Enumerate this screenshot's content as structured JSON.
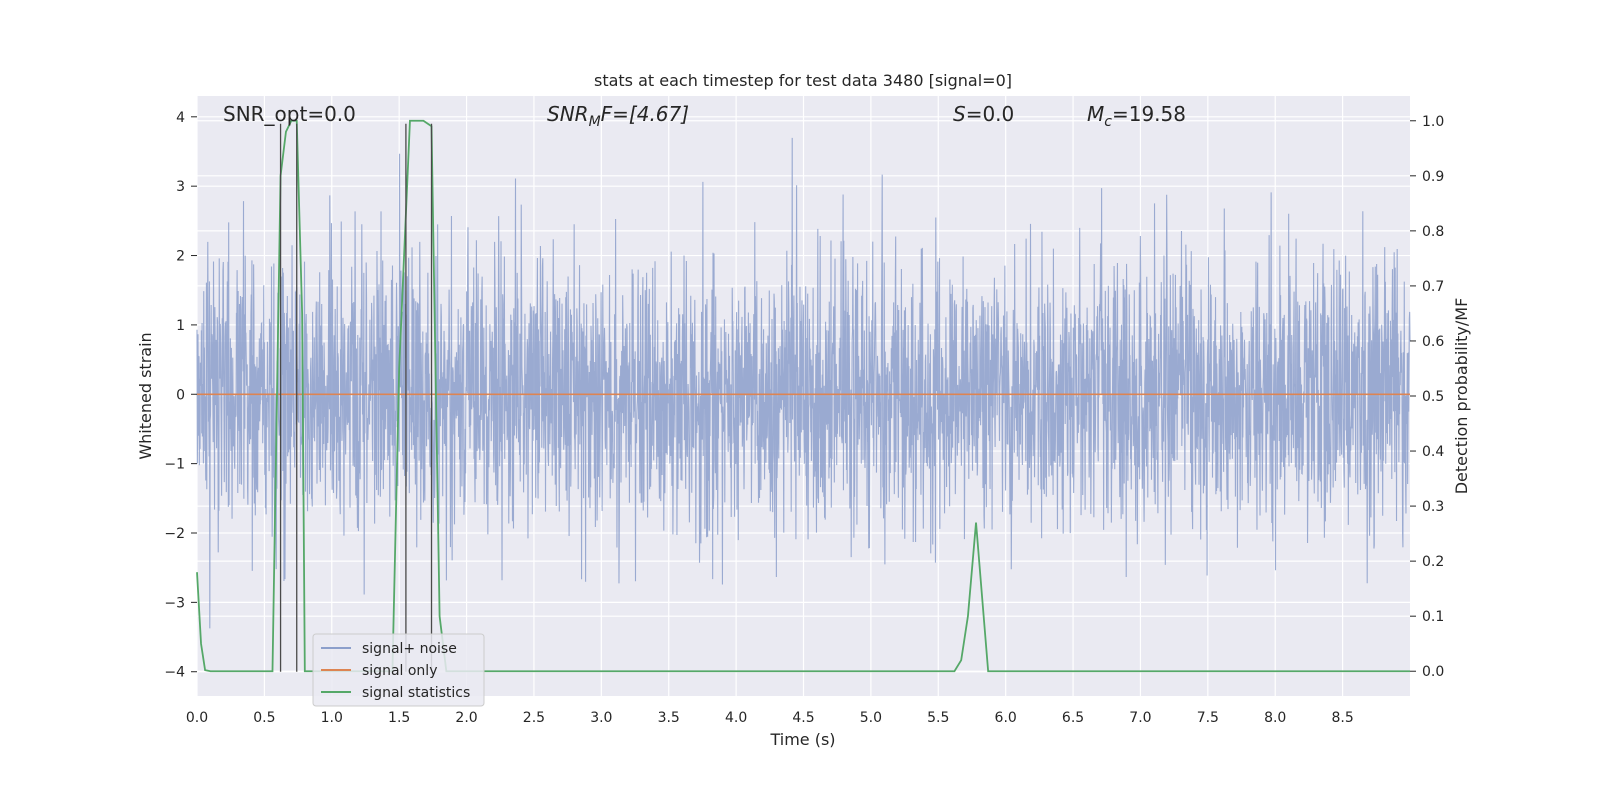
{
  "chart_data": {
    "type": "line",
    "title": "stats at each timestep for test data 3480 [signal=0]",
    "xlabel": "Time (s)",
    "ylabel": "Whitened strain",
    "y2label": "Detection probability/MF",
    "xlim": [
      0.0,
      9.0
    ],
    "ylim": [
      -4.35,
      4.3
    ],
    "y2lim": [
      -0.045,
      1.045
    ],
    "xticks": [
      "0.0",
      "0.5",
      "1.0",
      "1.5",
      "2.0",
      "2.5",
      "3.0",
      "3.5",
      "4.0",
      "4.5",
      "5.0",
      "5.5",
      "6.0",
      "6.5",
      "7.0",
      "7.5",
      "8.0",
      "8.5"
    ],
    "yticks": [
      "4",
      "3",
      "2",
      "1",
      "0",
      "−1",
      "−2",
      "−3",
      "−4"
    ],
    "y2ticks": [
      "1.0",
      "0.9",
      "0.8",
      "0.7",
      "0.6",
      "0.5",
      "0.4",
      "0.3",
      "0.2",
      "0.1",
      "0.0"
    ],
    "grid": true,
    "legend_position": "lower-left",
    "annotations": {
      "snr_opt": "SNR_opt=0.0",
      "snr_mf_main": "SNR",
      "snr_mf_sub": "M",
      "snr_mf_rest": "F=[4.67]",
      "s_main": "S",
      "s_rest": "=0.0",
      "mc_main": "M",
      "mc_sub": "c",
      "mc_rest": "=19.58"
    },
    "series": [
      {
        "name": "signal+ noise",
        "axis": "left",
        "color": "#8c9fcb",
        "description_values": "whitened noise, dense, roughly within [-4, 4]"
      },
      {
        "name": "signal only",
        "axis": "left",
        "color": "#dd8452",
        "x": [
          0.0,
          9.0
        ],
        "y": [
          0.0,
          0.0
        ]
      },
      {
        "name": "signal statistics",
        "axis": "right",
        "color": "#55a868",
        "x": [
          0.0,
          0.03,
          0.06,
          0.1,
          0.15,
          0.56,
          0.62,
          0.66,
          0.7,
          0.74,
          0.78,
          0.8,
          0.85,
          1.45,
          1.5,
          1.58,
          1.62,
          1.68,
          1.74,
          1.8,
          1.85,
          1.88,
          5.62,
          5.67,
          5.72,
          5.78,
          5.82,
          5.87,
          5.9,
          9.0
        ],
        "y": [
          0.18,
          0.05,
          0.002,
          0.0,
          0.0,
          0.0,
          0.9,
          0.98,
          1.0,
          1.0,
          0.65,
          0.0,
          0.0,
          0.0,
          0.55,
          1.0,
          1.0,
          1.0,
          0.99,
          0.1,
          0.0,
          0.0,
          0.0,
          0.02,
          0.1,
          0.27,
          0.15,
          0.0,
          0.0,
          0.0
        ]
      }
    ],
    "vertical_markers": [
      {
        "x": 0.62,
        "y_from": -4.0,
        "y_to": 3.9
      },
      {
        "x": 0.74,
        "y_from": -4.0,
        "y_to": 3.9
      },
      {
        "x": 1.55,
        "y_from": -4.0,
        "y_to": 3.9
      },
      {
        "x": 1.74,
        "y_from": -4.0,
        "y_to": 3.9
      }
    ],
    "colors": {
      "plot_background": "#eaeaf2",
      "grid": "#ffffff",
      "marker_line": "#4a4a4a",
      "text": "#262626"
    }
  }
}
